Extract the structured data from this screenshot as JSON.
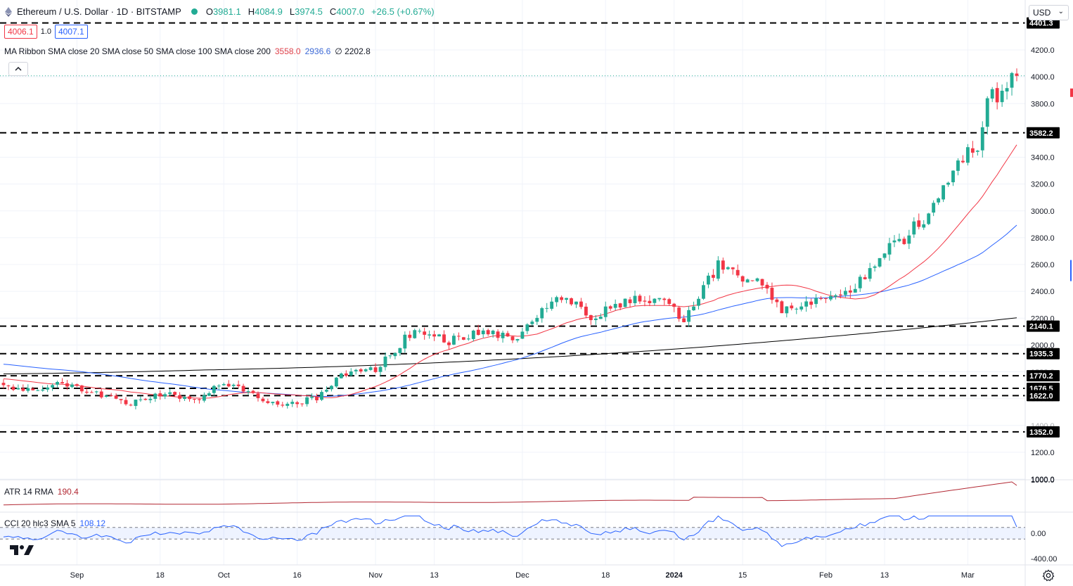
{
  "header": {
    "symbol_title": "Ethereum / U.S. Dollar · 1D · BITSTAMP",
    "ohlc": [
      {
        "k": "O",
        "v": "3981.1"
      },
      {
        "k": "H",
        "v": "4084.9"
      },
      {
        "k": "L",
        "v": "3974.5"
      },
      {
        "k": "C",
        "v": "4007.0"
      },
      {
        "k": "",
        "v": "+26.5 (+0.67%)"
      }
    ],
    "bid": "4006.1",
    "spread": "1.0",
    "ask": "4007.1",
    "ma_label": "MA Ribbon SMA close 20 SMA close 50 SMA close 100 SMA close 200",
    "ma_value_1": "3558.0",
    "ma_value_2": "2936.6",
    "ma_value_3": "∅ 2202.8",
    "currency": "USD"
  },
  "indicators": {
    "atr_label": "ATR 14 RMA",
    "atr_value": "190.4",
    "cci_label": "CCI 20 hlc3 SMA 5",
    "cci_value": "108.12"
  },
  "colors": {
    "up": "#22ab94",
    "down": "#f23645",
    "sma20": "#f23645",
    "sma50": "#2962ff",
    "sma200": "#000000",
    "atr": "#b22833",
    "cci": "#2962ff"
  },
  "icons": {
    "symbol": "ethereum-icon",
    "collapse": "chevron-up-icon",
    "currency": "chevron-down-icon",
    "logo": "tradingview-logo",
    "settings": "gear-icon"
  },
  "chart_data": {
    "type": "candlestick",
    "symbol": "ETHUSD",
    "timeframe": "1D",
    "y_axis": {
      "ylim": [
        1000,
        4520
      ],
      "ticks": [
        "4200.0",
        "4000.0",
        "3800.0",
        "3400.0",
        "3200.0",
        "3000.0",
        "2800.0",
        "2600.0",
        "2400.0",
        "2200.0",
        "2000.0",
        "1800.0",
        "1600.0",
        "1400.0",
        "1200.0",
        "1000.0"
      ]
    },
    "x_axis": {
      "labels": [
        {
          "label": "Sep",
          "date": "2023-09-01"
        },
        {
          "label": "18",
          "date": "2023-09-18"
        },
        {
          "label": "Oct",
          "date": "2023-10-01"
        },
        {
          "label": "16",
          "date": "2023-10-16"
        },
        {
          "label": "Nov",
          "date": "2023-11-01"
        },
        {
          "label": "13",
          "date": "2023-11-13"
        },
        {
          "label": "Dec",
          "date": "2023-12-01"
        },
        {
          "label": "18",
          "date": "2023-12-18"
        },
        {
          "label": "2024",
          "date": "2024-01-01",
          "bold": true
        },
        {
          "label": "15",
          "date": "2024-01-15"
        },
        {
          "label": "Feb",
          "date": "2024-02-01"
        },
        {
          "label": "13",
          "date": "2024-02-13"
        },
        {
          "label": "Mar",
          "date": "2024-03-01"
        }
      ]
    },
    "date_range": [
      "2023-08-17",
      "2024-03-11"
    ],
    "horizontal_levels": [
      "4401.3",
      "3582.2",
      "2140.1",
      "1935.3",
      "1770.2",
      "1676.5",
      "1622.0",
      "1352.0"
    ],
    "last_price": "4007.0",
    "closes": [
      {
        "date": "2023-08-17",
        "close": 1685
      },
      {
        "date": "2023-08-23",
        "close": 1675
      },
      {
        "date": "2023-08-29",
        "close": 1725
      },
      {
        "date": "2023-09-05",
        "close": 1635
      },
      {
        "date": "2023-09-11",
        "close": 1555
      },
      {
        "date": "2023-09-18",
        "close": 1640
      },
      {
        "date": "2023-09-25",
        "close": 1595
      },
      {
        "date": "2023-10-01",
        "close": 1725
      },
      {
        "date": "2023-10-06",
        "close": 1645
      },
      {
        "date": "2023-10-12",
        "close": 1550
      },
      {
        "date": "2023-10-20",
        "close": 1600
      },
      {
        "date": "2023-10-25",
        "close": 1790
      },
      {
        "date": "2023-11-01",
        "close": 1820
      },
      {
        "date": "2023-11-09",
        "close": 2120
      },
      {
        "date": "2023-11-16",
        "close": 2030
      },
      {
        "date": "2023-11-23",
        "close": 2090
      },
      {
        "date": "2023-11-29",
        "close": 2040
      },
      {
        "date": "2023-12-05",
        "close": 2240
      },
      {
        "date": "2023-12-09",
        "close": 2370
      },
      {
        "date": "2023-12-15",
        "close": 2210
      },
      {
        "date": "2023-12-22",
        "close": 2320
      },
      {
        "date": "2023-12-28",
        "close": 2350
      },
      {
        "date": "2024-01-03",
        "close": 2200
      },
      {
        "date": "2024-01-10",
        "close": 2590
      },
      {
        "date": "2024-01-14",
        "close": 2520
      },
      {
        "date": "2024-01-19",
        "close": 2470
      },
      {
        "date": "2024-01-23",
        "close": 2240
      },
      {
        "date": "2024-01-30",
        "close": 2340
      },
      {
        "date": "2024-02-06",
        "close": 2370
      },
      {
        "date": "2024-02-12",
        "close": 2660
      },
      {
        "date": "2024-02-17",
        "close": 2800
      },
      {
        "date": "2024-02-22",
        "close": 2980
      },
      {
        "date": "2024-02-28",
        "close": 3390
      },
      {
        "date": "2024-03-03",
        "close": 3500
      },
      {
        "date": "2024-03-05",
        "close": 3820
      },
      {
        "date": "2024-03-09",
        "close": 3910
      },
      {
        "date": "2024-03-11",
        "close": 4007
      }
    ],
    "series": [
      {
        "name": "SMA close 20",
        "value": "3558.0"
      },
      {
        "name": "SMA close 50",
        "value": "2936.6"
      },
      {
        "name": "SMA close 200",
        "value": "2202.8"
      }
    ],
    "atr": {
      "label": "ATR 14 RMA",
      "value": "190.4",
      "ticks": [
        "1000.0"
      ]
    },
    "cci": {
      "label": "CCI 20 hlc3 SMA 5",
      "value": "108.12",
      "ticks": [
        "0.00",
        "-400.00"
      ],
      "bands": [
        100,
        -100
      ]
    }
  }
}
